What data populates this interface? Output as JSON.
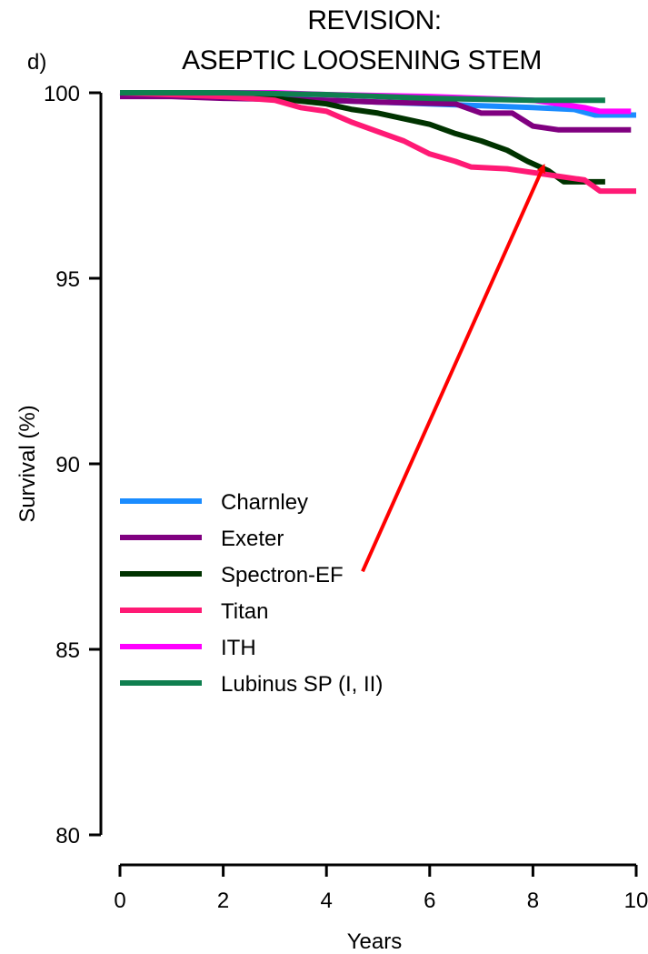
{
  "chart_data": {
    "type": "line",
    "panel_label": "d)",
    "title": [
      "REVISION:",
      "ASEPTIC LOOSENING STEM"
    ],
    "xlabel": "Years",
    "ylabel": "Survival (%)",
    "xlim": [
      0,
      10
    ],
    "ylim": [
      80,
      100
    ],
    "x_ticks": [
      "0",
      "2",
      "4",
      "6",
      "8",
      "10"
    ],
    "y_ticks": [
      "80",
      "85",
      "90",
      "95",
      "100"
    ],
    "grid": false,
    "legend_position": "lower-left",
    "series": [
      {
        "name": "Charnley",
        "color": "#1a8cff",
        "points": [
          [
            0,
            100
          ],
          [
            1.5,
            99.95
          ],
          [
            2,
            99.9
          ],
          [
            3,
            99.85
          ],
          [
            4,
            99.8
          ],
          [
            5,
            99.75
          ],
          [
            6,
            99.7
          ],
          [
            7,
            99.65
          ],
          [
            8,
            99.6
          ],
          [
            8.8,
            99.55
          ],
          [
            9.2,
            99.4
          ],
          [
            10,
            99.4
          ]
        ]
      },
      {
        "name": "Exeter",
        "color": "#800080",
        "points": [
          [
            0,
            99.9
          ],
          [
            1,
            99.9
          ],
          [
            2,
            99.85
          ],
          [
            4,
            99.8
          ],
          [
            5,
            99.75
          ],
          [
            6.5,
            99.7
          ],
          [
            7,
            99.45
          ],
          [
            7.6,
            99.45
          ],
          [
            8,
            99.1
          ],
          [
            8.5,
            99.0
          ],
          [
            9.9,
            99.0
          ]
        ]
      },
      {
        "name": "Spectron-EF",
        "color": "#003300",
        "points": [
          [
            0.5,
            100
          ],
          [
            2,
            100
          ],
          [
            3,
            99.85
          ],
          [
            4,
            99.7
          ],
          [
            4.5,
            99.55
          ],
          [
            5,
            99.45
          ],
          [
            5.5,
            99.3
          ],
          [
            6,
            99.15
          ],
          [
            6.5,
            98.9
          ],
          [
            7,
            98.7
          ],
          [
            7.5,
            98.45
          ],
          [
            7.9,
            98.15
          ],
          [
            8.3,
            97.9
          ],
          [
            8.6,
            97.6
          ],
          [
            9.4,
            97.6
          ]
        ]
      },
      {
        "name": "Titan",
        "color": "#ff1a75",
        "points": [
          [
            0,
            100
          ],
          [
            2,
            99.9
          ],
          [
            3,
            99.8
          ],
          [
            3.5,
            99.6
          ],
          [
            4,
            99.5
          ],
          [
            4.5,
            99.2
          ],
          [
            5,
            98.95
          ],
          [
            5.5,
            98.7
          ],
          [
            6,
            98.35
          ],
          [
            6.5,
            98.15
          ],
          [
            6.8,
            98.0
          ],
          [
            7.5,
            97.95
          ],
          [
            8.5,
            97.75
          ],
          [
            9,
            97.65
          ],
          [
            9.3,
            97.35
          ],
          [
            10,
            97.35
          ]
        ]
      },
      {
        "name": "ITH",
        "color": "#ff00ff",
        "points": [
          [
            0,
            100
          ],
          [
            3,
            100
          ],
          [
            4,
            99.95
          ],
          [
            6,
            99.9
          ],
          [
            8,
            99.8
          ],
          [
            9,
            99.6
          ],
          [
            9.3,
            99.5
          ],
          [
            9.9,
            99.5
          ]
        ]
      },
      {
        "name": "Lubinus SP (I, II)",
        "color": "#0f7f4f",
        "points": [
          [
            0,
            100
          ],
          [
            2,
            100
          ],
          [
            4,
            99.95
          ],
          [
            6,
            99.85
          ],
          [
            8,
            99.8
          ],
          [
            9.4,
            99.8
          ]
        ]
      }
    ],
    "annotation": {
      "type": "arrow",
      "color": "#ff0000",
      "from": [
        4.7,
        87.1
      ],
      "to": [
        8.2,
        98.0
      ]
    }
  }
}
